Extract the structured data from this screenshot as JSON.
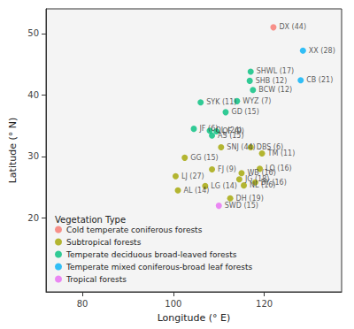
{
  "chart_data": {
    "type": "scatter",
    "x_label": "Longitude (° E)",
    "y_label": "Latitude (° N)",
    "xlim": [
      72,
      137
    ],
    "xticks": [
      80,
      100,
      120
    ],
    "ylim": [
      8,
      54
    ],
    "yticks": [
      20,
      30,
      40,
      50
    ],
    "grid": false,
    "legend": "lower left",
    "legend_title": "Vegetation Type",
    "data_labels": true,
    "series": [
      {
        "name": "Cold temperate coniferous forests",
        "color": "#F8766D",
        "points": [
          {
            "x": 122,
            "y": 51,
            "label": "DX (44)"
          }
        ]
      },
      {
        "name": "Subtropical forests",
        "color": "#A3A500",
        "points": [
          {
            "x": 117,
            "y": 31.5,
            "label": "DBS (6)"
          },
          {
            "x": 119.5,
            "y": 30.5,
            "label": "TM (11)"
          },
          {
            "x": 102.5,
            "y": 29.8,
            "label": "GG (15)"
          },
          {
            "x": 110.5,
            "y": 31.5,
            "label": "SNJ (44)"
          },
          {
            "x": 108.5,
            "y": 27.9,
            "label": "FJ (9)"
          },
          {
            "x": 115,
            "y": 27.3,
            "label": "WB (16)"
          },
          {
            "x": 114.5,
            "y": 26.3,
            "label": "JG (18)"
          },
          {
            "x": 119,
            "y": 28,
            "label": "LQ (16)"
          },
          {
            "x": 100.5,
            "y": 26.8,
            "label": "LJ (27)"
          },
          {
            "x": 115.5,
            "y": 25.3,
            "label": "NL (16)"
          },
          {
            "x": 118,
            "y": 25.8,
            "label": "BY (16)"
          },
          {
            "x": 107,
            "y": 25.2,
            "label": "LG (14)"
          },
          {
            "x": 112.5,
            "y": 23.2,
            "label": "DH (19)"
          },
          {
            "x": 101,
            "y": 24.5,
            "label": "AL (14)"
          }
        ]
      },
      {
        "name": "Temperate deciduous broad-leaved forests",
        "color": "#00BF7D",
        "points": [
          {
            "x": 117,
            "y": 43.8,
            "label": "SHWL (17)"
          },
          {
            "x": 116.8,
            "y": 42.3,
            "label": "SHB (12)"
          },
          {
            "x": 117.5,
            "y": 40.8,
            "label": "BCW (12)"
          },
          {
            "x": 114,
            "y": 39,
            "label": "WYZ (7)"
          },
          {
            "x": 111.5,
            "y": 37.2,
            "label": "GD (15)"
          },
          {
            "x": 106,
            "y": 38.8,
            "label": "SYK (11)"
          },
          {
            "x": 108,
            "y": 34.2,
            "label": "QL (24)"
          },
          {
            "x": 109.5,
            "y": 34.1,
            "label": "QF (9)"
          },
          {
            "x": 104.5,
            "y": 34.5,
            "label": "JF (6)"
          },
          {
            "x": 108.5,
            "y": 33.4,
            "label": "AS (15)"
          }
        ]
      },
      {
        "name": "Temperate mixed coniferous-broad leaf forests",
        "color": "#00B0F6",
        "points": [
          {
            "x": 128.5,
            "y": 47.2,
            "label": "XX (28)"
          },
          {
            "x": 128,
            "y": 42.4,
            "label": "CB (21)"
          }
        ]
      },
      {
        "name": "Tropical forests",
        "color": "#E76BF3",
        "points": [
          {
            "x": 110,
            "y": 22,
            "label": "SWD (15)"
          }
        ]
      }
    ]
  }
}
